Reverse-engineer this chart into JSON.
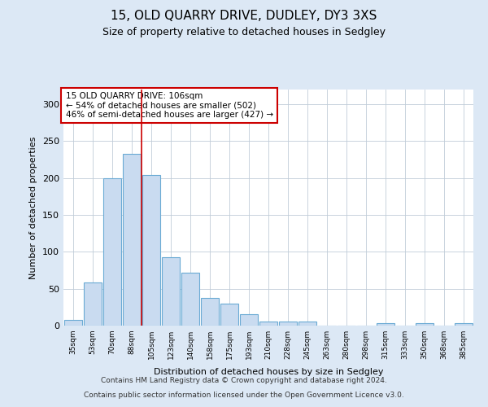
{
  "title": "15, OLD QUARRY DRIVE, DUDLEY, DY3 3XS",
  "subtitle": "Size of property relative to detached houses in Sedgley",
  "xlabel": "Distribution of detached houses by size in Sedgley",
  "ylabel": "Number of detached properties",
  "categories": [
    "35sqm",
    "53sqm",
    "70sqm",
    "88sqm",
    "105sqm",
    "123sqm",
    "140sqm",
    "158sqm",
    "175sqm",
    "193sqm",
    "210sqm",
    "228sqm",
    "245sqm",
    "263sqm",
    "280sqm",
    "298sqm",
    "315sqm",
    "333sqm",
    "350sqm",
    "368sqm",
    "385sqm"
  ],
  "values": [
    8,
    58,
    200,
    233,
    204,
    93,
    72,
    38,
    30,
    16,
    6,
    5,
    5,
    0,
    0,
    0,
    3,
    0,
    3,
    0,
    3
  ],
  "bar_color": "#c9dbf0",
  "bar_edge_color": "#6aaad4",
  "vline_color": "#cc0000",
  "vline_index": 3.5,
  "annotation_lines": [
    "15 OLD QUARRY DRIVE: 106sqm",
    "← 54% of detached houses are smaller (502)",
    "46% of semi-detached houses are larger (427) →"
  ],
  "annotation_box_facecolor": "#ffffff",
  "annotation_box_edgecolor": "#cc0000",
  "bg_color": "#dce8f5",
  "plot_bg_color": "#ffffff",
  "footer_line1": "Contains HM Land Registry data © Crown copyright and database right 2024.",
  "footer_line2": "Contains public sector information licensed under the Open Government Licence v3.0.",
  "ylim": [
    0,
    320
  ],
  "yticks": [
    0,
    50,
    100,
    150,
    200,
    250,
    300
  ]
}
